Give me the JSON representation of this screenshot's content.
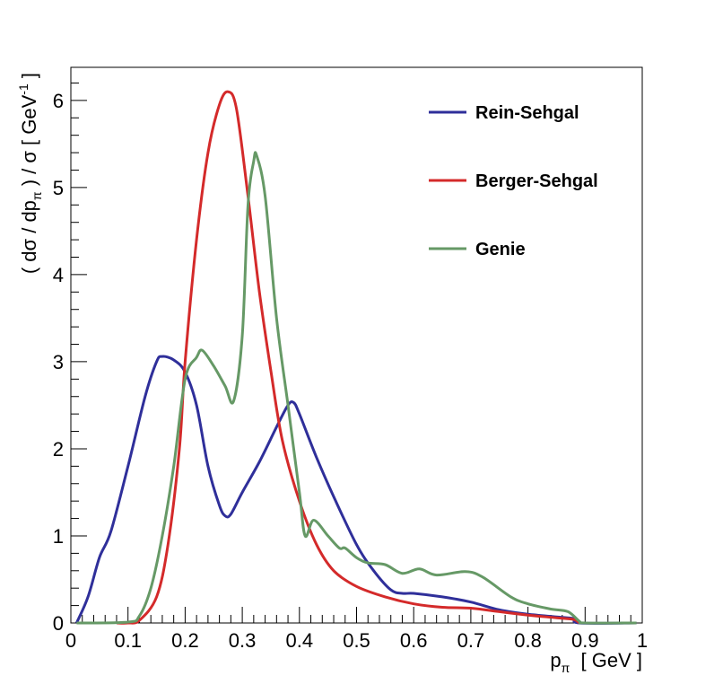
{
  "chart_data": {
    "type": "line",
    "title": "",
    "xlabel": {
      "main": "p",
      "sub": "π",
      "unit": "[ GeV ]"
    },
    "ylabel": {
      "pre": "( dσ / dp",
      "sub": "π",
      "mid": " ) / σ  [ GeV",
      "sup": "-1",
      "post": " ]"
    },
    "xlim": [
      0,
      1
    ],
    "ylim": [
      0,
      6.38
    ],
    "x_ticks": [
      "0",
      "0.1",
      "0.2",
      "0.3",
      "0.4",
      "0.5",
      "0.6",
      "0.7",
      "0.8",
      "0.9",
      "1"
    ],
    "y_ticks": [
      "0",
      "1",
      "2",
      "3",
      "4",
      "5",
      "6"
    ],
    "grid": false,
    "legend_position": "top-right",
    "series": [
      {
        "name": "Rein-Sehgal",
        "color": "#2f2f9a",
        "points": [
          [
            0.01,
            0.0
          ],
          [
            0.03,
            0.3
          ],
          [
            0.05,
            0.75
          ],
          [
            0.07,
            1.05
          ],
          [
            0.1,
            1.8
          ],
          [
            0.13,
            2.6
          ],
          [
            0.15,
            3.0
          ],
          [
            0.16,
            3.06
          ],
          [
            0.18,
            3.02
          ],
          [
            0.2,
            2.88
          ],
          [
            0.22,
            2.5
          ],
          [
            0.24,
            1.8
          ],
          [
            0.26,
            1.35
          ],
          [
            0.27,
            1.23
          ],
          [
            0.28,
            1.25
          ],
          [
            0.3,
            1.5
          ],
          [
            0.33,
            1.85
          ],
          [
            0.36,
            2.25
          ],
          [
            0.38,
            2.5
          ],
          [
            0.39,
            2.53
          ],
          [
            0.4,
            2.4
          ],
          [
            0.43,
            1.9
          ],
          [
            0.46,
            1.45
          ],
          [
            0.5,
            0.9
          ],
          [
            0.53,
            0.6
          ],
          [
            0.56,
            0.38
          ],
          [
            0.58,
            0.34
          ],
          [
            0.6,
            0.34
          ],
          [
            0.65,
            0.3
          ],
          [
            0.7,
            0.24
          ],
          [
            0.75,
            0.15
          ],
          [
            0.8,
            0.1
          ],
          [
            0.85,
            0.07
          ],
          [
            0.88,
            0.05
          ],
          [
            0.89,
            0.0
          ],
          [
            0.99,
            0.0
          ]
        ]
      },
      {
        "name": "Berger-Sehgal",
        "color": "#d42a2a",
        "points": [
          [
            0.08,
            0.0
          ],
          [
            0.1,
            0.0
          ],
          [
            0.12,
            0.03
          ],
          [
            0.15,
            0.3
          ],
          [
            0.17,
            0.9
          ],
          [
            0.19,
            2.0
          ],
          [
            0.2,
            3.0
          ],
          [
            0.22,
            4.4
          ],
          [
            0.24,
            5.4
          ],
          [
            0.26,
            5.95
          ],
          [
            0.275,
            6.1
          ],
          [
            0.29,
            5.9
          ],
          [
            0.31,
            4.9
          ],
          [
            0.33,
            3.8
          ],
          [
            0.35,
            2.9
          ],
          [
            0.37,
            2.1
          ],
          [
            0.4,
            1.4
          ],
          [
            0.43,
            0.9
          ],
          [
            0.46,
            0.6
          ],
          [
            0.5,
            0.42
          ],
          [
            0.55,
            0.3
          ],
          [
            0.6,
            0.22
          ],
          [
            0.65,
            0.18
          ],
          [
            0.7,
            0.17
          ],
          [
            0.75,
            0.13
          ],
          [
            0.8,
            0.09
          ],
          [
            0.85,
            0.06
          ],
          [
            0.88,
            0.04
          ],
          [
            0.89,
            0.0
          ]
        ]
      },
      {
        "name": "Genie",
        "color": "#669966",
        "points": [
          [
            0.01,
            0.0
          ],
          [
            0.1,
            0.01
          ],
          [
            0.12,
            0.08
          ],
          [
            0.14,
            0.4
          ],
          [
            0.16,
            1.0
          ],
          [
            0.18,
            1.8
          ],
          [
            0.2,
            2.8
          ],
          [
            0.22,
            3.05
          ],
          [
            0.23,
            3.13
          ],
          [
            0.25,
            2.95
          ],
          [
            0.27,
            2.72
          ],
          [
            0.285,
            2.55
          ],
          [
            0.3,
            3.3
          ],
          [
            0.31,
            4.8
          ],
          [
            0.32,
            5.3
          ],
          [
            0.325,
            5.37
          ],
          [
            0.34,
            4.9
          ],
          [
            0.36,
            3.5
          ],
          [
            0.38,
            2.5
          ],
          [
            0.4,
            1.5
          ],
          [
            0.41,
            1.0
          ],
          [
            0.425,
            1.18
          ],
          [
            0.45,
            1.0
          ],
          [
            0.47,
            0.86
          ],
          [
            0.48,
            0.86
          ],
          [
            0.5,
            0.75
          ],
          [
            0.52,
            0.69
          ],
          [
            0.55,
            0.67
          ],
          [
            0.58,
            0.57
          ],
          [
            0.61,
            0.62
          ],
          [
            0.64,
            0.55
          ],
          [
            0.69,
            0.59
          ],
          [
            0.72,
            0.53
          ],
          [
            0.77,
            0.3
          ],
          [
            0.8,
            0.22
          ],
          [
            0.84,
            0.16
          ],
          [
            0.87,
            0.13
          ],
          [
            0.89,
            0.02
          ],
          [
            0.9,
            0.0
          ],
          [
            0.99,
            0.0
          ]
        ]
      }
    ]
  }
}
